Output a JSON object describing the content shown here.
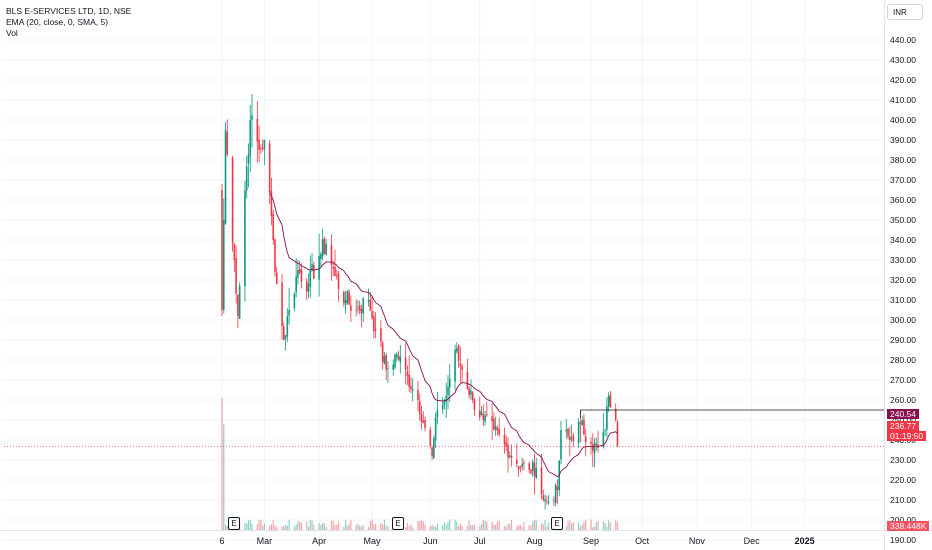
{
  "legend": {
    "symbol": "BLS E-SERVICES LTD, 1D, NSE",
    "ema": "EMA (20, close, 0, SMA, 5)",
    "vol": "Vol"
  },
  "currency": "INR",
  "colors": {
    "up": "#089981",
    "down": "#f23645",
    "ema": "#880e4f",
    "grid": "#f0f3fa",
    "ema_tag": "#880e4f",
    "price_tag": "#f23645",
    "vol_tag": "#f7525f"
  },
  "tags": {
    "ema_value": "240.54",
    "last_price": "236.77",
    "countdown": "01:19:50",
    "volume": "338.448K"
  },
  "earnings_badges": [
    "E",
    "E",
    "E"
  ],
  "chart_data": {
    "type": "candlestick",
    "ylim": [
      185,
      445
    ],
    "y_ticks": [
      "440.00",
      "430.00",
      "420.00",
      "410.00",
      "400.00",
      "390.00",
      "380.00",
      "370.00",
      "360.00",
      "350.00",
      "340.00",
      "330.00",
      "320.00",
      "310.00",
      "300.00",
      "290.00",
      "280.00",
      "270.00",
      "260.00",
      "250.00",
      "240.00",
      "230.00",
      "220.00",
      "210.00",
      "200.00",
      "190.00"
    ],
    "x_ticks": [
      "6",
      "Mar",
      "Apr",
      "May",
      "Jun",
      "Jul",
      "Aug",
      "Sep",
      "Oct",
      "Nov",
      "Dec",
      "2025"
    ],
    "close_anchors": [
      {
        "date": "2024-02-06",
        "close": 305
      },
      {
        "date": "2024-02-08",
        "close": 395
      },
      {
        "date": "2024-02-13",
        "close": 330
      },
      {
        "date": "2024-02-15",
        "close": 302
      },
      {
        "date": "2024-02-19",
        "close": 365
      },
      {
        "date": "2024-02-22",
        "close": 400
      },
      {
        "date": "2024-02-27",
        "close": 385
      },
      {
        "date": "2024-03-01",
        "close": 390
      },
      {
        "date": "2024-03-06",
        "close": 340
      },
      {
        "date": "2024-03-08",
        "close": 318
      },
      {
        "date": "2024-03-12",
        "close": 290
      },
      {
        "date": "2024-03-15",
        "close": 305
      },
      {
        "date": "2024-03-20",
        "close": 325
      },
      {
        "date": "2024-03-26",
        "close": 318
      },
      {
        "date": "2024-04-01",
        "close": 332
      },
      {
        "date": "2024-04-05",
        "close": 338
      },
      {
        "date": "2024-04-10",
        "close": 322
      },
      {
        "date": "2024-04-16",
        "close": 310
      },
      {
        "date": "2024-04-22",
        "close": 305
      },
      {
        "date": "2024-04-29",
        "close": 310
      },
      {
        "date": "2024-05-03",
        "close": 295
      },
      {
        "date": "2024-05-09",
        "close": 275
      },
      {
        "date": "2024-05-15",
        "close": 283
      },
      {
        "date": "2024-05-21",
        "close": 272
      },
      {
        "date": "2024-05-27",
        "close": 260
      },
      {
        "date": "2024-05-31",
        "close": 246
      },
      {
        "date": "2024-06-04",
        "close": 232
      },
      {
        "date": "2024-06-07",
        "close": 255
      },
      {
        "date": "2024-06-12",
        "close": 262
      },
      {
        "date": "2024-06-17",
        "close": 285
      },
      {
        "date": "2024-06-21",
        "close": 275
      },
      {
        "date": "2024-06-27",
        "close": 260
      },
      {
        "date": "2024-07-03",
        "close": 250
      },
      {
        "date": "2024-07-09",
        "close": 245
      },
      {
        "date": "2024-07-15",
        "close": 238
      },
      {
        "date": "2024-07-22",
        "close": 228
      },
      {
        "date": "2024-07-29",
        "close": 225
      },
      {
        "date": "2024-08-02",
        "close": 226
      },
      {
        "date": "2024-08-06",
        "close": 210
      },
      {
        "date": "2024-08-09",
        "close": 209
      },
      {
        "date": "2024-08-14",
        "close": 215
      },
      {
        "date": "2024-08-16",
        "close": 245
      },
      {
        "date": "2024-08-21",
        "close": 240
      },
      {
        "date": "2024-08-27",
        "close": 248
      },
      {
        "date": "2024-09-02",
        "close": 238
      },
      {
        "date": "2024-09-06",
        "close": 236
      },
      {
        "date": "2024-09-10",
        "close": 245
      },
      {
        "date": "2024-09-12",
        "close": 262
      },
      {
        "date": "2024-09-16",
        "close": 250
      },
      {
        "date": "2024-09-17",
        "close": 236.77
      }
    ],
    "last_close": 236.77,
    "ema_last": 240.54,
    "resistance_level": 255,
    "resistance_from": "2024-08-27",
    "volume_last": "338.448K",
    "earnings_dates": [
      "2024-02-13",
      "2024-05-13",
      "2024-08-12"
    ]
  }
}
